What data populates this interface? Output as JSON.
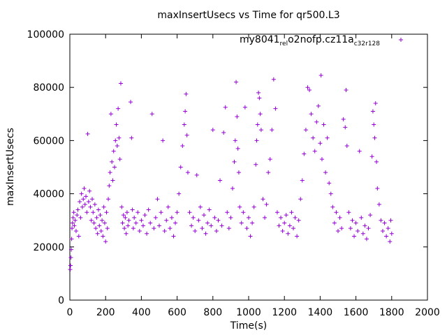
{
  "chart_data": {
    "type": "scatter",
    "title": "maxInsertUsecs vs Time for qr500.L3",
    "xlabel": "Time(s)",
    "ylabel": "maxInsertUsecs",
    "xlim": [
      0,
      2000
    ],
    "ylim": [
      0,
      100000
    ],
    "x_ticks": [
      "0",
      "200",
      "400",
      "600",
      "800",
      "1000",
      "1200",
      "1400",
      "1600",
      "1800",
      "2000"
    ],
    "y_ticks": [
      "0",
      "20000",
      "40000",
      "60000",
      "80000",
      "100000"
    ],
    "grid": false,
    "legend_position": "top-right",
    "marker": "+",
    "color": "#9400D3",
    "series": [
      {
        "name": "my8041_rel_o2nofp.cz11a_c32r128",
        "name_parts": [
          "my8041",
          "rel",
          "o2nofp.cz11a",
          "c32r128"
        ],
        "points": [
          [
            2,
            11500
          ],
          [
            4,
            13000
          ],
          [
            6,
            16000
          ],
          [
            8,
            19000
          ],
          [
            10,
            23000
          ],
          [
            12,
            27000
          ],
          [
            15,
            29000
          ],
          [
            18,
            31000
          ],
          [
            22,
            33000
          ],
          [
            25,
            28000
          ],
          [
            30,
            30000
          ],
          [
            35,
            26000
          ],
          [
            40,
            32000
          ],
          [
            45,
            34000
          ],
          [
            50,
            24000
          ],
          [
            55,
            37000
          ],
          [
            60,
            31000
          ],
          [
            65,
            40000
          ],
          [
            70,
            35000
          ],
          [
            75,
            38000
          ],
          [
            80,
            42000
          ],
          [
            85,
            36000
          ],
          [
            90,
            39000
          ],
          [
            95,
            33000
          ],
          [
            100,
            62500
          ],
          [
            105,
            37000
          ],
          [
            110,
            41000
          ],
          [
            115,
            35000
          ],
          [
            120,
            30000
          ],
          [
            125,
            38000
          ],
          [
            130,
            33000
          ],
          [
            135,
            29000
          ],
          [
            140,
            36000
          ],
          [
            145,
            27000
          ],
          [
            150,
            31000
          ],
          [
            155,
            25000
          ],
          [
            160,
            34000
          ],
          [
            165,
            28000
          ],
          [
            170,
            32000
          ],
          [
            175,
            26000
          ],
          [
            180,
            30000
          ],
          [
            185,
            24000
          ],
          [
            190,
            35000
          ],
          [
            195,
            29000
          ],
          [
            200,
            22000
          ],
          [
            205,
            33000
          ],
          [
            210,
            27000
          ],
          [
            215,
            38000
          ],
          [
            220,
            43000
          ],
          [
            225,
            48000
          ],
          [
            230,
            70000
          ],
          [
            235,
            52000
          ],
          [
            240,
            45000
          ],
          [
            245,
            56000
          ],
          [
            250,
            50000
          ],
          [
            255,
            60000
          ],
          [
            260,
            66000
          ],
          [
            265,
            58000
          ],
          [
            270,
            72000
          ],
          [
            275,
            61000
          ],
          [
            280,
            53000
          ],
          [
            285,
            81500
          ],
          [
            290,
            35000
          ],
          [
            295,
            29000
          ],
          [
            300,
            32000
          ],
          [
            305,
            27000
          ],
          [
            310,
            31000
          ],
          [
            315,
            25000
          ],
          [
            320,
            33000
          ],
          [
            325,
            28000
          ],
          [
            330,
            30000
          ],
          [
            340,
            74500
          ],
          [
            345,
            61000
          ],
          [
            350,
            34000
          ],
          [
            355,
            27000
          ],
          [
            360,
            31000
          ],
          [
            370,
            29000
          ],
          [
            380,
            33000
          ],
          [
            390,
            26000
          ],
          [
            400,
            30000
          ],
          [
            410,
            28000
          ],
          [
            420,
            32000
          ],
          [
            430,
            25000
          ],
          [
            440,
            34000
          ],
          [
            450,
            29000
          ],
          [
            460,
            70000
          ],
          [
            470,
            27000
          ],
          [
            480,
            31000
          ],
          [
            490,
            38000
          ],
          [
            500,
            28000
          ],
          [
            510,
            33000
          ],
          [
            520,
            60000
          ],
          [
            530,
            26000
          ],
          [
            540,
            30000
          ],
          [
            550,
            35000
          ],
          [
            560,
            27000
          ],
          [
            570,
            31000
          ],
          [
            580,
            24000
          ],
          [
            590,
            29000
          ],
          [
            600,
            33000
          ],
          [
            610,
            40000
          ],
          [
            620,
            50000
          ],
          [
            630,
            58000
          ],
          [
            640,
            66000
          ],
          [
            645,
            71000
          ],
          [
            650,
            77500
          ],
          [
            655,
            62000
          ],
          [
            660,
            48000
          ],
          [
            670,
            33000
          ],
          [
            680,
            28000
          ],
          [
            690,
            31000
          ],
          [
            700,
            26000
          ],
          [
            710,
            47000
          ],
          [
            720,
            30000
          ],
          [
            730,
            35000
          ],
          [
            740,
            27000
          ],
          [
            750,
            32000
          ],
          [
            760,
            25000
          ],
          [
            770,
            29000
          ],
          [
            780,
            34000
          ],
          [
            790,
            28000
          ],
          [
            800,
            64000
          ],
          [
            810,
            31000
          ],
          [
            820,
            26000
          ],
          [
            830,
            30000
          ],
          [
            840,
            45000
          ],
          [
            850,
            28000
          ],
          [
            860,
            63000
          ],
          [
            870,
            72500
          ],
          [
            880,
            33000
          ],
          [
            890,
            27000
          ],
          [
            900,
            31000
          ],
          [
            910,
            42000
          ],
          [
            920,
            52000
          ],
          [
            925,
            60000
          ],
          [
            930,
            82000
          ],
          [
            935,
            69000
          ],
          [
            940,
            57000
          ],
          [
            945,
            48000
          ],
          [
            950,
            35000
          ],
          [
            960,
            29000
          ],
          [
            970,
            33000
          ],
          [
            980,
            72500
          ],
          [
            990,
            27000
          ],
          [
            1000,
            31000
          ],
          [
            1010,
            24000
          ],
          [
            1020,
            29000
          ],
          [
            1030,
            35000
          ],
          [
            1040,
            51000
          ],
          [
            1045,
            60000
          ],
          [
            1050,
            66000
          ],
          [
            1055,
            78000
          ],
          [
            1060,
            76000
          ],
          [
            1065,
            70000
          ],
          [
            1070,
            64000
          ],
          [
            1080,
            38000
          ],
          [
            1090,
            31000
          ],
          [
            1100,
            36000
          ],
          [
            1110,
            48000
          ],
          [
            1120,
            53000
          ],
          [
            1130,
            64000
          ],
          [
            1140,
            83000
          ],
          [
            1150,
            72000
          ],
          [
            1160,
            33000
          ],
          [
            1170,
            28000
          ],
          [
            1180,
            31000
          ],
          [
            1190,
            26000
          ],
          [
            1200,
            29000
          ],
          [
            1210,
            32000
          ],
          [
            1220,
            25000
          ],
          [
            1230,
            28000
          ],
          [
            1240,
            33000
          ],
          [
            1250,
            27000
          ],
          [
            1260,
            31000
          ],
          [
            1270,
            24000
          ],
          [
            1280,
            30000
          ],
          [
            1290,
            38000
          ],
          [
            1300,
            45000
          ],
          [
            1310,
            55000
          ],
          [
            1320,
            64000
          ],
          [
            1330,
            80000
          ],
          [
            1340,
            79000
          ],
          [
            1350,
            70000
          ],
          [
            1360,
            61000
          ],
          [
            1370,
            56000
          ],
          [
            1380,
            67000
          ],
          [
            1390,
            73000
          ],
          [
            1400,
            59000
          ],
          [
            1405,
            84500
          ],
          [
            1410,
            53000
          ],
          [
            1420,
            66000
          ],
          [
            1430,
            48000
          ],
          [
            1440,
            61000
          ],
          [
            1450,
            44000
          ],
          [
            1460,
            40000
          ],
          [
            1470,
            35000
          ],
          [
            1480,
            29000
          ],
          [
            1490,
            33000
          ],
          [
            1500,
            26000
          ],
          [
            1510,
            31000
          ],
          [
            1520,
            27000
          ],
          [
            1530,
            68000
          ],
          [
            1540,
            65000
          ],
          [
            1545,
            79000
          ],
          [
            1550,
            58000
          ],
          [
            1560,
            33000
          ],
          [
            1570,
            27000
          ],
          [
            1580,
            30000
          ],
          [
            1590,
            24000
          ],
          [
            1600,
            29000
          ],
          [
            1610,
            26000
          ],
          [
            1620,
            56000
          ],
          [
            1630,
            31000
          ],
          [
            1640,
            25000
          ],
          [
            1650,
            28000
          ],
          [
            1660,
            23000
          ],
          [
            1670,
            27000
          ],
          [
            1680,
            32000
          ],
          [
            1690,
            54000
          ],
          [
            1695,
            71000
          ],
          [
            1700,
            66000
          ],
          [
            1705,
            61000
          ],
          [
            1710,
            74000
          ],
          [
            1715,
            52000
          ],
          [
            1720,
            42000
          ],
          [
            1730,
            36000
          ],
          [
            1740,
            30000
          ],
          [
            1750,
            26000
          ],
          [
            1760,
            29000
          ],
          [
            1770,
            24000
          ],
          [
            1780,
            27000
          ],
          [
            1790,
            22000
          ],
          [
            1795,
            30000
          ],
          [
            1800,
            25000
          ]
        ]
      }
    ]
  }
}
